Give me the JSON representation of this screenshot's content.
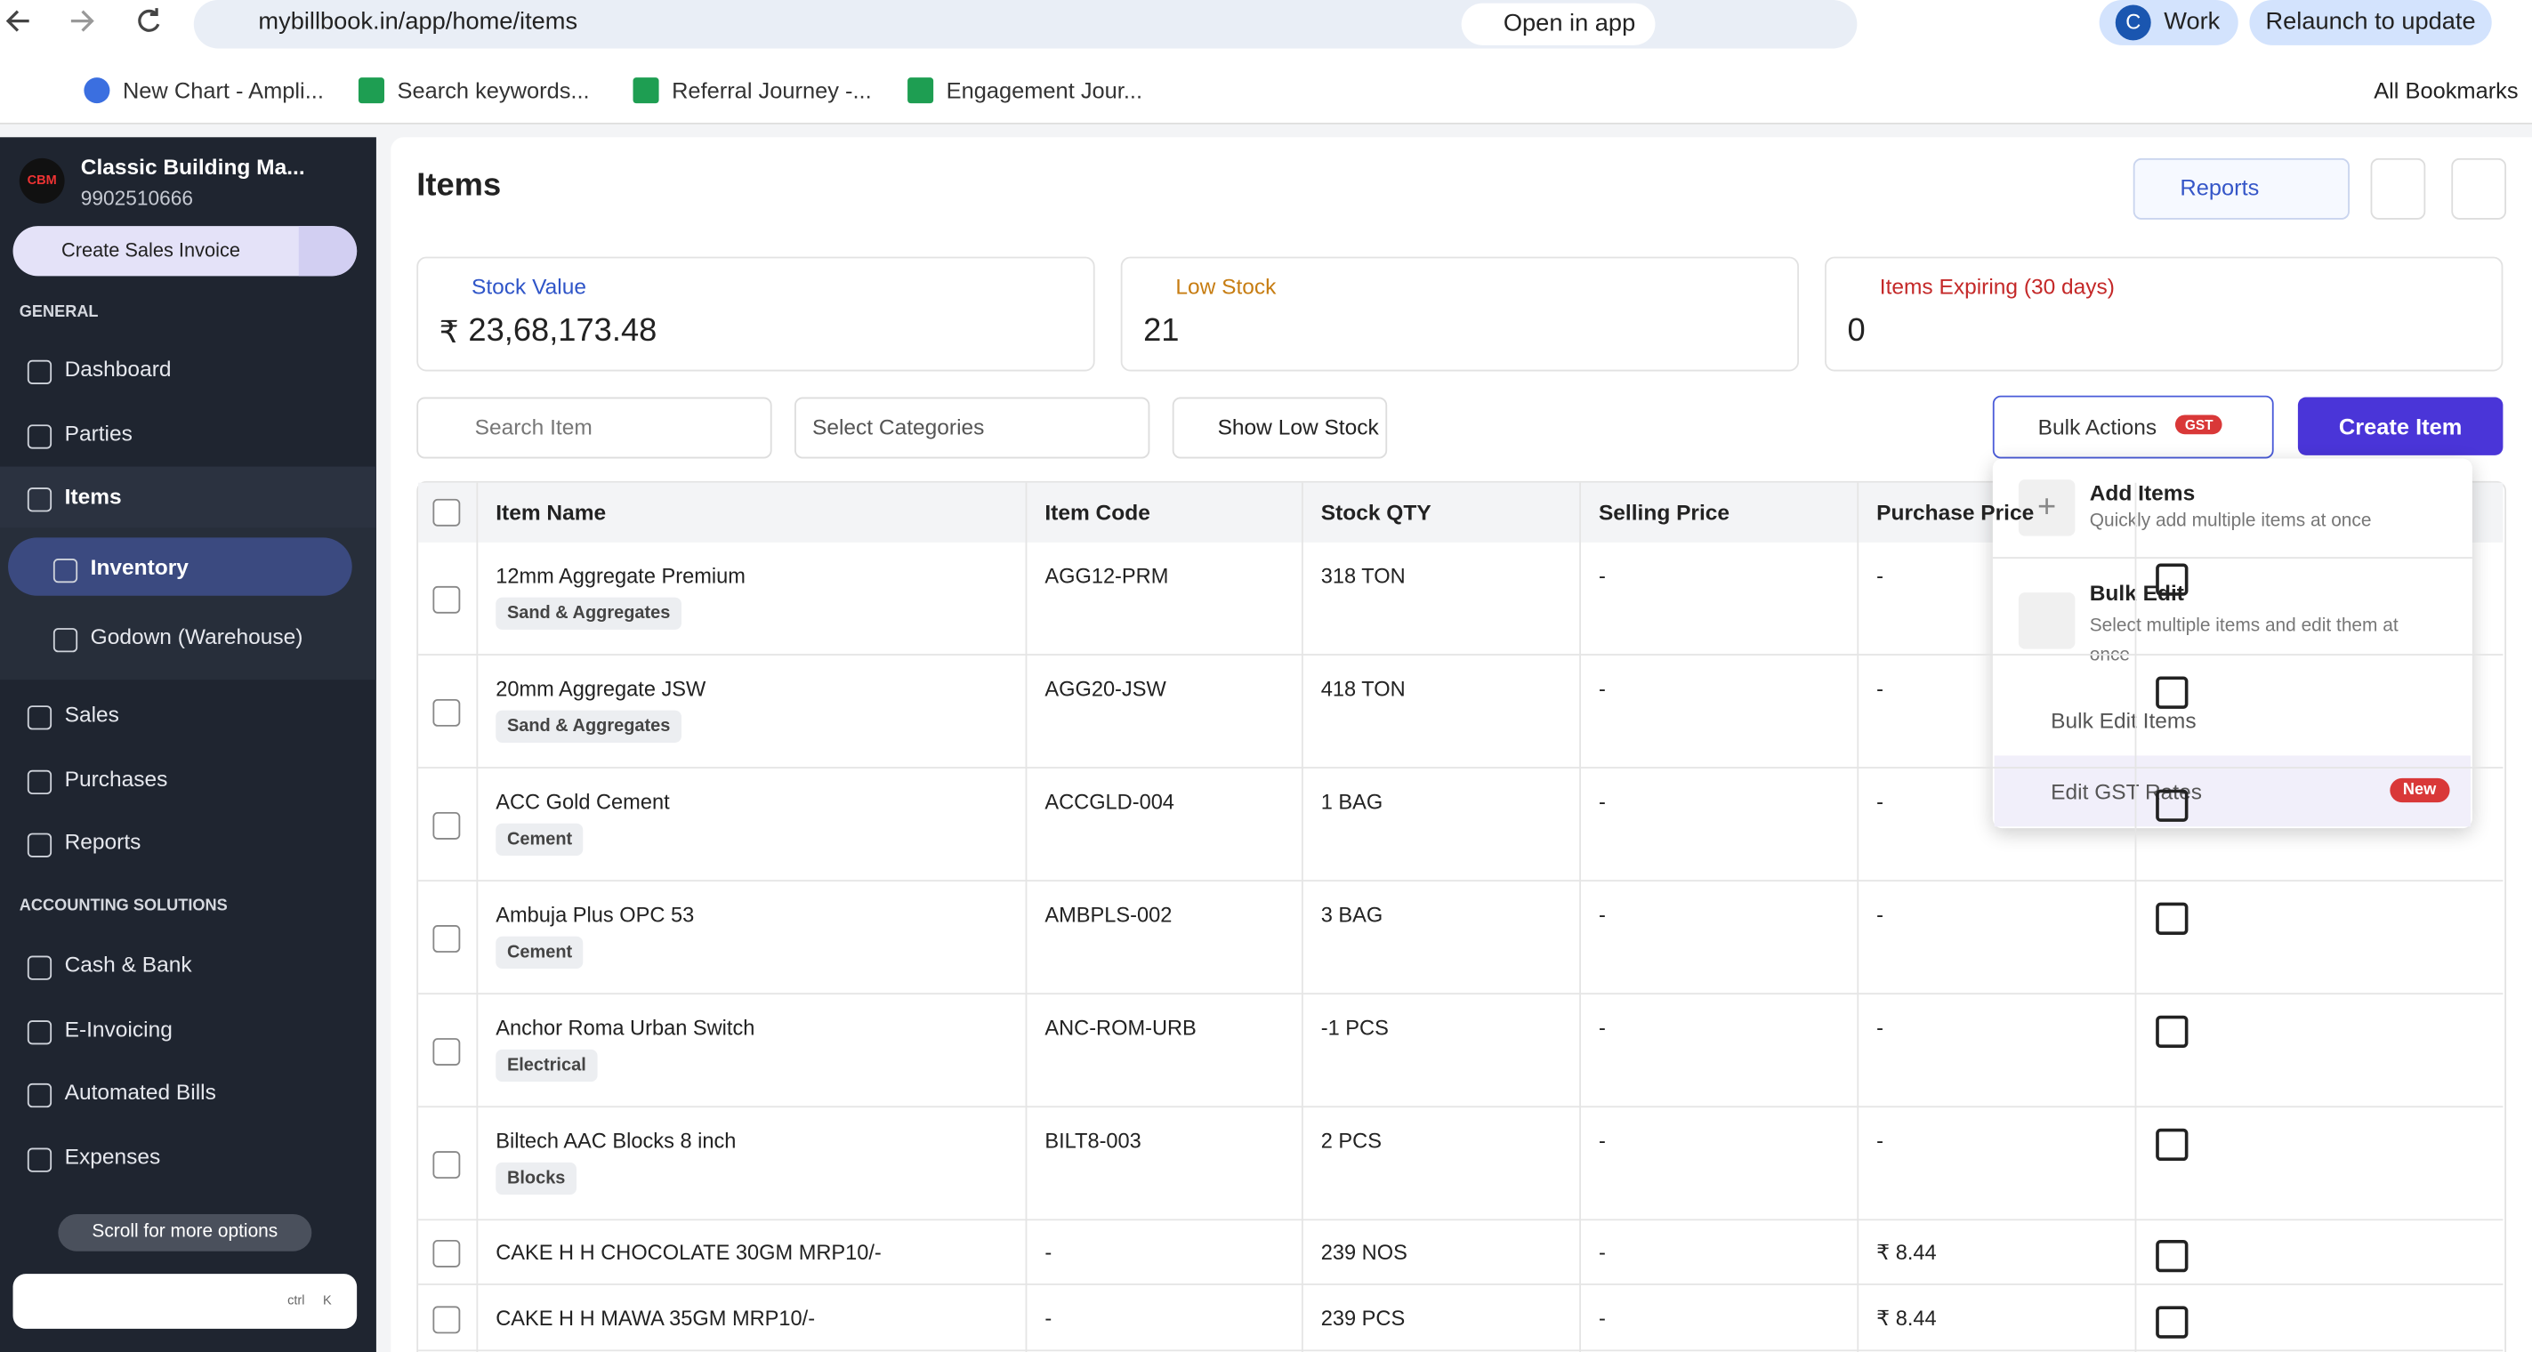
{
  "browser": {
    "url": "mybillbook.in/app/home/items",
    "open_in_app": "Open in app",
    "profile_initial": "C",
    "profile": "Work",
    "relaunch": "Relaunch to update",
    "bookmarks": [
      "New Chart - Ampli...",
      "Search keywords...",
      "Referral Journey -...",
      "Engagement Jour..."
    ],
    "all_bookmarks": "All Bookmarks"
  },
  "sidebar": {
    "logo": "CBM",
    "business_name": "Classic Building Ma...",
    "phone": "9902510666",
    "create_invoice": "Create Sales Invoice",
    "general": {
      "label": "GENERAL",
      "items": [
        "Dashboard",
        "Parties",
        "Items",
        "Inventory",
        "Godown (Warehouse)",
        "Sales",
        "Purchases",
        "Reports"
      ]
    },
    "accounting": {
      "label": "ACCOUNTING SOLUTIONS",
      "items": [
        "Cash & Bank",
        "E-Invoicing",
        "Automated Bills",
        "Expenses"
      ]
    },
    "scroll_hint": "Scroll for more options",
    "shortcut": [
      "ctrl",
      "K"
    ]
  },
  "header": {
    "title": "Items",
    "reports": "Reports"
  },
  "cards": [
    {
      "label": "Stock Value",
      "currency": "₹",
      "value": "23,68,173.48"
    },
    {
      "label": "Low Stock",
      "value": "21"
    },
    {
      "label": "Items Expiring (30 days)",
      "value": "0"
    }
  ],
  "toolbar": {
    "search": "Search Item",
    "categories": "Select Categories",
    "low_stock": "Show Low Stock",
    "bulk_actions": "Bulk Actions",
    "gst": "GST",
    "create_item": "Create Item"
  },
  "table": {
    "columns": [
      "Item Name",
      "Item Code",
      "Stock QTY",
      "Selling Price",
      "Purchase Price"
    ],
    "rows": [
      [
        "12mm Aggregate Premium",
        "Sand & Aggregates",
        "AGG12-PRM",
        "318 TON",
        "-",
        "-"
      ],
      [
        "20mm Aggregate JSW",
        "Sand & Aggregates",
        "AGG20-JSW",
        "418 TON",
        "-",
        "-"
      ],
      [
        "ACC Gold Cement",
        "Cement",
        "ACCGLD-004",
        "1 BAG",
        "-",
        "-"
      ],
      [
        "Ambuja Plus OPC 53",
        "Cement",
        "AMBPLS-002",
        "3 BAG",
        "-",
        "-"
      ],
      [
        "Anchor Roma Urban Switch",
        "Electrical",
        "ANC-ROM-URB",
        "-1 PCS",
        "-",
        "-"
      ],
      [
        "Biltech AAC Blocks 8 inch",
        "Blocks",
        "BILT8-003",
        "2 PCS",
        "-",
        "-"
      ],
      [
        "CAKE H H CHOCOLATE 30GM MRP10/-",
        null,
        "-",
        "239 NOS",
        "-",
        "₹ 8.44"
      ],
      [
        "CAKE H H MAWA 35GM MRP10/-",
        null,
        "-",
        "239 PCS",
        "-",
        "₹ 8.44"
      ]
    ]
  },
  "dropdown": {
    "add_items": {
      "title": "Add Items",
      "desc": "Quickly add multiple items at once"
    },
    "bulk_edit": {
      "title": "Bulk Edit",
      "desc": "Select multiple items and edit them at once"
    },
    "bulk_edit_items": "Bulk Edit Items",
    "edit_gst": "Edit GST Rates",
    "new_badge": "New"
  }
}
